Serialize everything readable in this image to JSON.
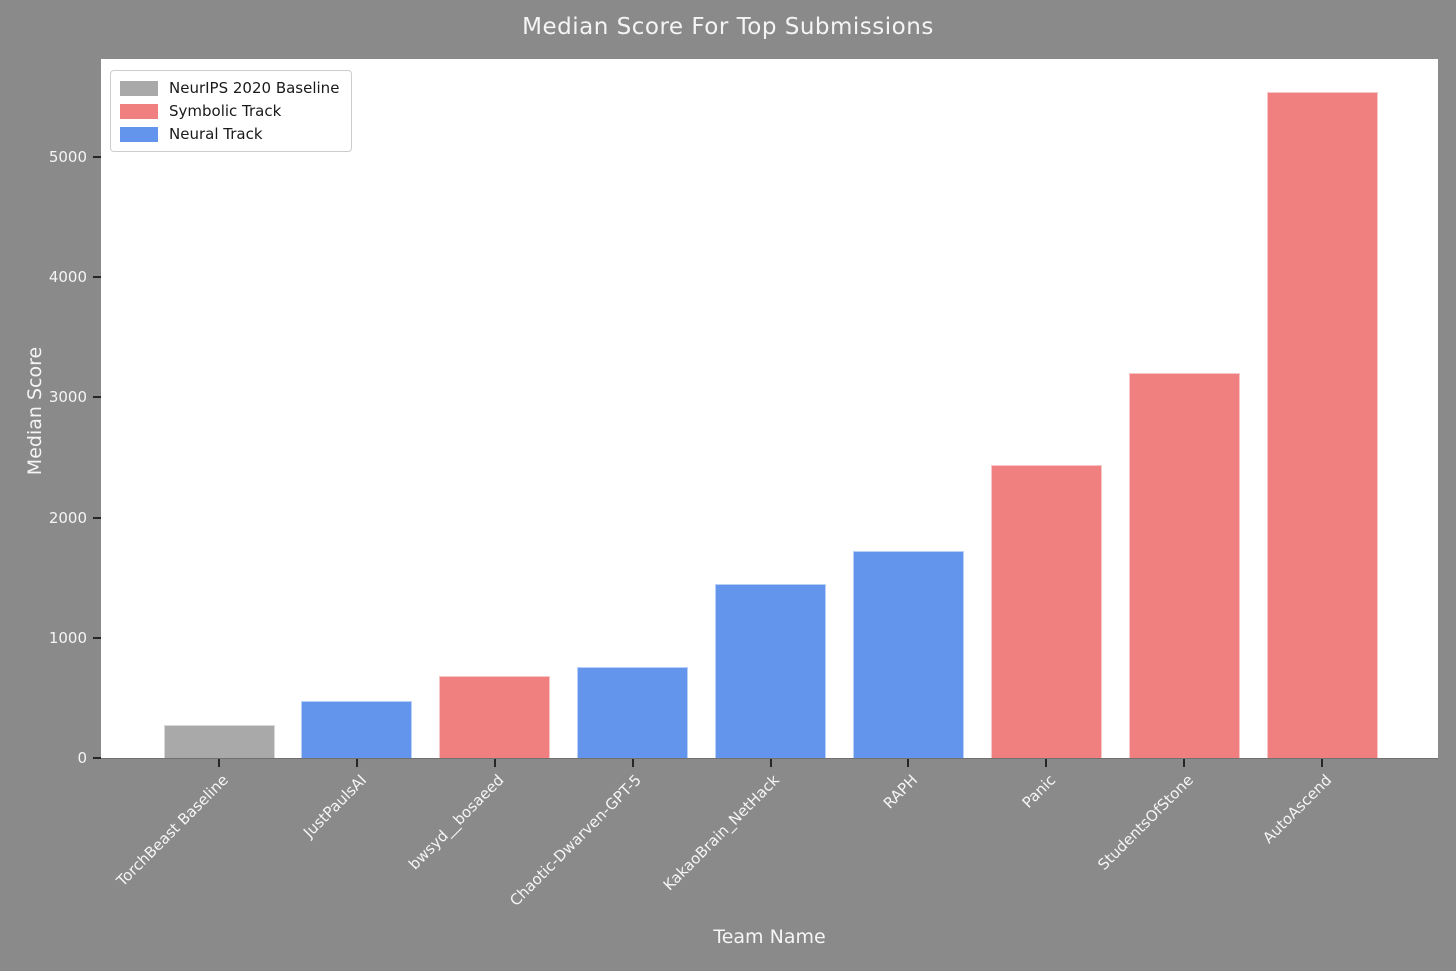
{
  "figure": {
    "background_color": "#8a8a8a",
    "text_color": "#f5f5f5"
  },
  "chart_data": {
    "type": "bar",
    "title": "Median Score For Top Submissions",
    "xlabel": "Team Name",
    "ylabel": "Median Score",
    "categories": [
      "TorchBeast Baseline",
      "JustPaulsAI",
      "bwsyd__bosaeed",
      "Chaotic-Dwarven-GPT-5",
      "KakaoBrain_NetHack",
      "RAPH",
      "Panic",
      "StudentsOfStone",
      "AutoAscend"
    ],
    "values": [
      273,
      477,
      682,
      756,
      1448,
      1722,
      2434,
      3207,
      5539
    ],
    "bar_tracks": [
      "NeurIPS 2020 Baseline",
      "Neural Track",
      "Symbolic Track",
      "Neural Track",
      "Neural Track",
      "Neural Track",
      "Symbolic Track",
      "Symbolic Track",
      "Symbolic Track"
    ],
    "track_colors": {
      "NeurIPS 2020 Baseline": "#a9a9a9",
      "Symbolic Track": "#f08080",
      "Neural Track": "#6495ed"
    },
    "legend": [
      "NeurIPS 2020 Baseline",
      "Symbolic Track",
      "Neural Track"
    ],
    "legend_position": "upper left",
    "yticks": [
      0,
      1000,
      2000,
      3000,
      4000,
      5000
    ],
    "ylim": [
      0,
      5816
    ],
    "grid": false
  }
}
